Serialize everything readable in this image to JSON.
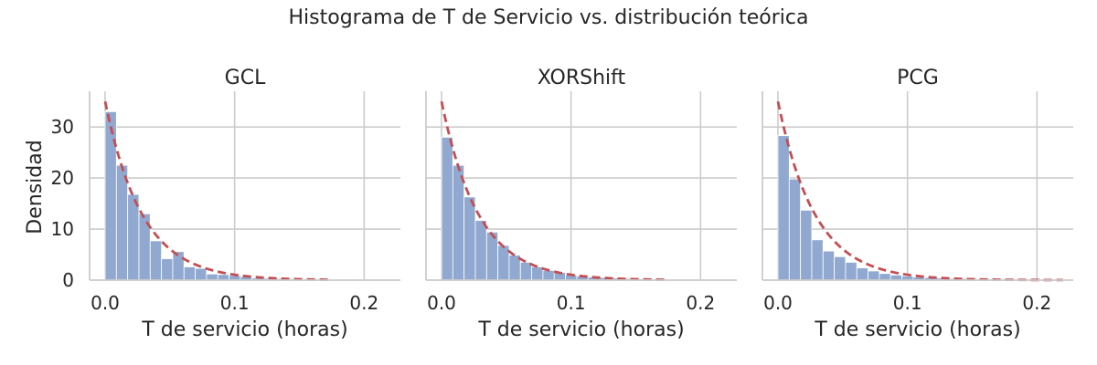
{
  "figure": {
    "title": "Histograma de T de Servicio vs. distribución teórica",
    "ylabel": "Densidad"
  },
  "colors": {
    "bar_fill": "#91a9d1",
    "bar_edge": "#ffffff",
    "curve": "#c44e52",
    "grid": "#cccccc",
    "axis": "#cccccc",
    "text": "#262626"
  },
  "chart_data": [
    {
      "type": "bar",
      "title": "GCL",
      "xlabel": "T de servicio (horas)",
      "ylabel": "Densidad",
      "xlim": [
        -0.012,
        0.228
      ],
      "ylim": [
        0,
        37
      ],
      "xticks": [
        0.0,
        0.1,
        0.2
      ],
      "xtick_labels": [
        "0.0",
        "0.1",
        "0.2"
      ],
      "yticks": [
        0,
        10,
        20,
        30
      ],
      "ytick_labels": [
        "0",
        "10",
        "20",
        "30"
      ],
      "grid": true,
      "bin_edges": [
        0.0,
        0.0087,
        0.0174,
        0.0261,
        0.0348,
        0.0435,
        0.0522,
        0.0609,
        0.0696,
        0.0783,
        0.087,
        0.0957,
        0.1044,
        0.1131,
        0.1218,
        0.1305,
        0.1392,
        0.1479,
        0.1566,
        0.1653,
        0.174,
        0.1827,
        0.1914,
        0.2001,
        0.2088
      ],
      "values": [
        33.0,
        22.5,
        16.8,
        13.0,
        7.7,
        4.2,
        5.6,
        2.6,
        2.3,
        1.2,
        1.1,
        0.9,
        0.7,
        0.4,
        0.35,
        0.3,
        0.2,
        0.2,
        0.15,
        0.15,
        0.1,
        0.1,
        0.05,
        0.05
      ],
      "curve": {
        "label": "distribución teórica",
        "style": "dashed",
        "rate": 35.0,
        "x_range": [
          0.0,
          0.175
        ]
      }
    },
    {
      "type": "bar",
      "title": "XORShift",
      "xlabel": "T de servicio (horas)",
      "ylabel": "",
      "xlim": [
        -0.012,
        0.228
      ],
      "ylim": [
        0,
        37
      ],
      "xticks": [
        0.0,
        0.1,
        0.2
      ],
      "xtick_labels": [
        "0.0",
        "0.1",
        "0.2"
      ],
      "yticks": [
        0,
        10,
        20,
        30
      ],
      "ytick_labels": [],
      "grid": true,
      "bin_edges": [
        0.0,
        0.0087,
        0.0174,
        0.0261,
        0.0348,
        0.0435,
        0.0522,
        0.0609,
        0.0696,
        0.0783,
        0.087,
        0.0957,
        0.1044,
        0.1131,
        0.1218,
        0.1305,
        0.1392,
        0.1479,
        0.1566,
        0.1653,
        0.174,
        0.1827,
        0.1914,
        0.2001,
        0.2088
      ],
      "values": [
        28.0,
        22.5,
        16.3,
        11.7,
        9.4,
        6.8,
        4.9,
        3.5,
        2.6,
        1.9,
        1.5,
        1.0,
        0.8,
        0.6,
        0.5,
        0.4,
        0.3,
        0.25,
        0.2,
        0.1,
        0.1,
        0.05,
        0.05,
        0.05
      ],
      "curve": {
        "label": "distribución teórica",
        "style": "dashed",
        "rate": 35.0,
        "x_range": [
          0.0,
          0.175
        ]
      }
    },
    {
      "type": "bar",
      "title": "PCG",
      "xlabel": "T de servicio (horas)",
      "ylabel": "",
      "xlim": [
        -0.012,
        0.228
      ],
      "ylim": [
        0,
        37
      ],
      "xticks": [
        0.0,
        0.1,
        0.2
      ],
      "xtick_labels": [
        "0.0",
        "0.1",
        "0.2"
      ],
      "yticks": [
        0,
        10,
        20,
        30
      ],
      "ytick_labels": [],
      "grid": true,
      "bin_edges": [
        0.0,
        0.0087,
        0.0174,
        0.0261,
        0.0348,
        0.0435,
        0.0522,
        0.0609,
        0.0696,
        0.0783,
        0.087,
        0.0957,
        0.1044,
        0.1131,
        0.1218,
        0.1305,
        0.1392,
        0.1479,
        0.1566,
        0.1653,
        0.174,
        0.1827,
        0.1914,
        0.2001,
        0.2088
      ],
      "values": [
        28.3,
        19.8,
        13.7,
        7.9,
        5.7,
        4.6,
        3.5,
        2.4,
        1.8,
        1.3,
        1.0,
        0.8,
        0.6,
        0.5,
        0.4,
        0.3,
        0.3,
        0.2,
        0.2,
        0.2,
        0.2,
        0.15,
        0.15,
        0.1
      ],
      "curve": {
        "label": "distribución teórica",
        "style": "dashed",
        "rate": 35.0,
        "x_range": [
          0.0,
          0.22
        ]
      }
    }
  ]
}
